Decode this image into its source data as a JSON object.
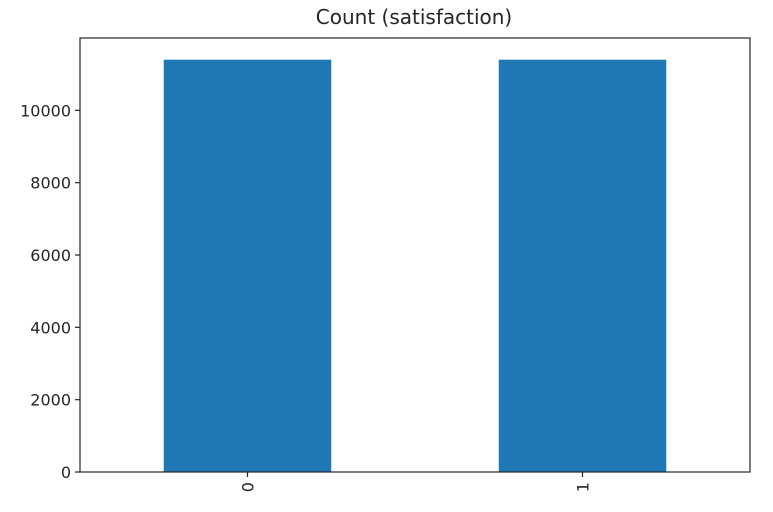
{
  "chart_data": {
    "type": "bar",
    "title": "Count (satisfaction)",
    "xlabel": "",
    "ylabel": "",
    "categories": [
      "0",
      "1"
    ],
    "values": [
      11400,
      11400
    ],
    "ylim": [
      0,
      12000
    ],
    "yticks": [
      "0",
      "2000",
      "4000",
      "6000",
      "8000",
      "10000"
    ],
    "ytick_values": [
      0,
      2000,
      4000,
      6000,
      8000,
      10000
    ],
    "bar_color": "#1f77b4",
    "grid": false,
    "legend": "none"
  }
}
